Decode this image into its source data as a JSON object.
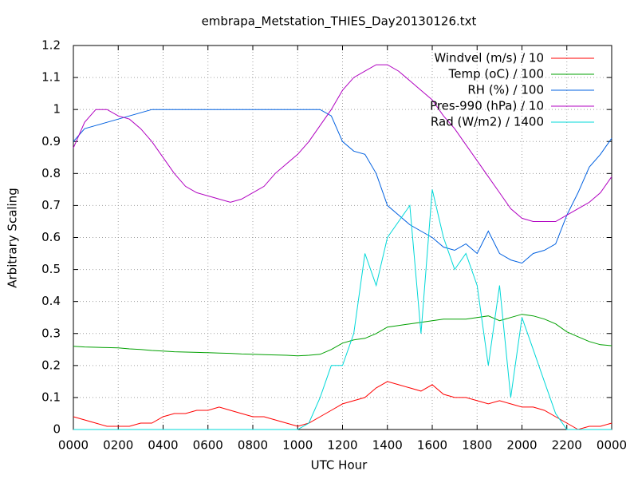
{
  "chart_data": {
    "type": "line",
    "title": "embrapa_Metstation_THIES_Day20130126.txt",
    "x_label": "UTC Hour",
    "y_label": "Arbitrary Scaling",
    "x": [
      0,
      0.5,
      1,
      1.5,
      2,
      2.5,
      3,
      3.5,
      4,
      4.5,
      5,
      5.5,
      6,
      6.5,
      7,
      7.5,
      8,
      8.5,
      9,
      9.5,
      10,
      10.5,
      11,
      11.5,
      12,
      12.5,
      13,
      13.5,
      14,
      14.5,
      15,
      15.5,
      16,
      16.5,
      17,
      17.5,
      18,
      18.5,
      19,
      19.5,
      20,
      20.5,
      21,
      21.5,
      22,
      22.5,
      23,
      23.5,
      24
    ],
    "xlim": [
      0,
      24
    ],
    "xticks": [
      {
        "value": 0,
        "label": "0000"
      },
      {
        "value": 2,
        "label": "0200"
      },
      {
        "value": 4,
        "label": "0400"
      },
      {
        "value": 6,
        "label": "0600"
      },
      {
        "value": 8,
        "label": "0800"
      },
      {
        "value": 10,
        "label": "1000"
      },
      {
        "value": 12,
        "label": "1200"
      },
      {
        "value": 14,
        "label": "1400"
      },
      {
        "value": 16,
        "label": "1600"
      },
      {
        "value": 18,
        "label": "1800"
      },
      {
        "value": 20,
        "label": "2000"
      },
      {
        "value": 22,
        "label": "2200"
      },
      {
        "value": 24,
        "label": "0000"
      }
    ],
    "ylim": [
      0,
      1.2
    ],
    "yticks": [
      0,
      0.1,
      0.2,
      0.3,
      0.4,
      0.5,
      0.6,
      0.7,
      0.8,
      0.9,
      1,
      1.1,
      1.2
    ],
    "grid": true,
    "legend": "top-right",
    "series": [
      {
        "name": "Windvel (m/s) / 10",
        "color": "#ff0000",
        "values": [
          0.04,
          0.03,
          0.02,
          0.01,
          0.01,
          0.01,
          0.02,
          0.02,
          0.04,
          0.05,
          0.05,
          0.06,
          0.06,
          0.07,
          0.06,
          0.05,
          0.04,
          0.04,
          0.03,
          0.02,
          0.01,
          0.02,
          0.04,
          0.06,
          0.08,
          0.09,
          0.1,
          0.13,
          0.15,
          0.14,
          0.13,
          0.12,
          0.14,
          0.11,
          0.1,
          0.1,
          0.09,
          0.08,
          0.09,
          0.08,
          0.07,
          0.07,
          0.06,
          0.04,
          0.02,
          0,
          0.01,
          0.01,
          0.02
        ]
      },
      {
        "name": "Temp (oC) / 100",
        "color": "#00a000",
        "values": [
          0.26,
          0.258,
          0.257,
          0.256,
          0.255,
          0.252,
          0.25,
          0.247,
          0.245,
          0.243,
          0.242,
          0.241,
          0.24,
          0.239,
          0.238,
          0.236,
          0.235,
          0.234,
          0.233,
          0.232,
          0.23,
          0.232,
          0.235,
          0.25,
          0.27,
          0.28,
          0.285,
          0.3,
          0.32,
          0.325,
          0.33,
          0.335,
          0.34,
          0.345,
          0.345,
          0.345,
          0.35,
          0.355,
          0.34,
          0.35,
          0.36,
          0.355,
          0.345,
          0.33,
          0.305,
          0.29,
          0.275,
          0.265,
          0.262
        ]
      },
      {
        "name": "RH (%) / 100",
        "color": "#0060e0",
        "values": [
          0.9,
          0.94,
          0.95,
          0.96,
          0.97,
          0.98,
          0.99,
          1,
          1,
          1,
          1,
          1,
          1,
          1,
          1,
          1,
          1,
          1,
          1,
          1,
          1,
          1,
          1,
          0.98,
          0.9,
          0.87,
          0.86,
          0.8,
          0.7,
          0.67,
          0.64,
          0.62,
          0.6,
          0.57,
          0.56,
          0.58,
          0.55,
          0.62,
          0.55,
          0.53,
          0.52,
          0.55,
          0.56,
          0.58,
          0.67,
          0.74,
          0.82,
          0.86,
          0.91
        ]
      },
      {
        "name": "Pres-990 (hPa) / 10",
        "color": "#b000c0",
        "values": [
          0.88,
          0.96,
          1,
          1,
          0.98,
          0.97,
          0.94,
          0.9,
          0.85,
          0.8,
          0.76,
          0.74,
          0.73,
          0.72,
          0.71,
          0.72,
          0.74,
          0.76,
          0.8,
          0.83,
          0.86,
          0.9,
          0.95,
          1,
          1.06,
          1.1,
          1.12,
          1.14,
          1.14,
          1.12,
          1.09,
          1.06,
          1.03,
          0.98,
          0.94,
          0.89,
          0.84,
          0.79,
          0.74,
          0.69,
          0.66,
          0.65,
          0.65,
          0.65,
          0.67,
          0.69,
          0.71,
          0.74,
          0.79
        ]
      },
      {
        "name": "Rad (W/m2) / 1400",
        "color": "#00d8d8",
        "values": [
          0,
          0,
          0,
          0,
          0,
          0,
          0,
          0,
          0,
          0,
          0,
          0,
          0,
          0,
          0,
          0,
          0,
          0,
          0,
          0,
          0,
          0.02,
          0.1,
          0.2,
          0.2,
          0.3,
          0.55,
          0.45,
          0.6,
          0.65,
          0.7,
          0.3,
          0.75,
          0.6,
          0.5,
          0.55,
          0.45,
          0.2,
          0.45,
          0.1,
          0.35,
          0.25,
          0.15,
          0.05,
          0,
          0,
          0,
          0,
          0
        ]
      }
    ]
  }
}
